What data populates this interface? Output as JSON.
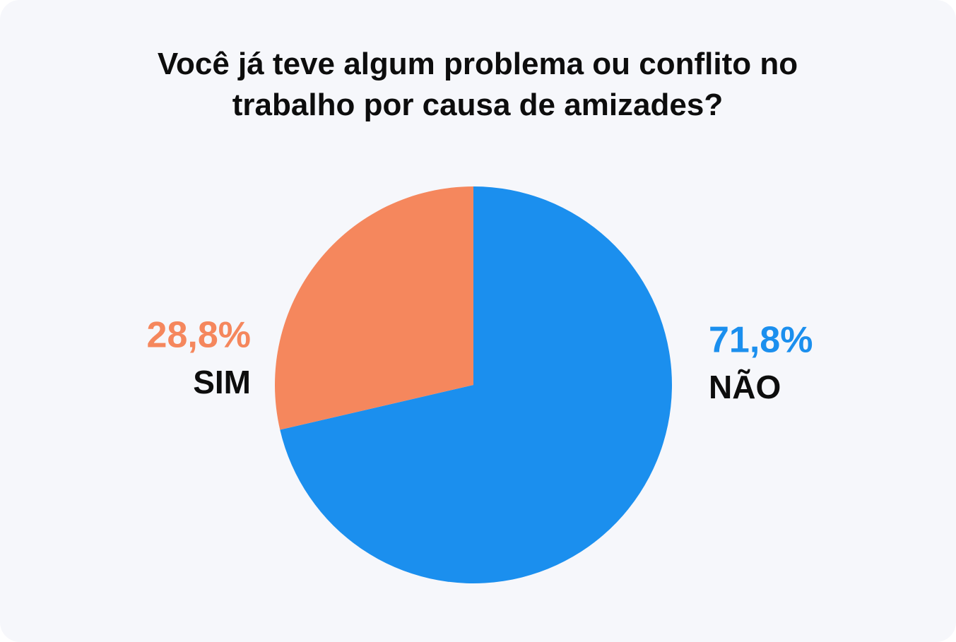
{
  "chart_data": {
    "type": "pie",
    "title": "Você já teve algum problema ou conflito no trabalho por causa de amizades?",
    "categories": [
      "NÃO",
      "SIM"
    ],
    "values": [
      71.8,
      28.8
    ],
    "value_labels": [
      "71,8%",
      "28,8%"
    ],
    "colors": [
      "#1b8fee",
      "#f5875d"
    ]
  }
}
